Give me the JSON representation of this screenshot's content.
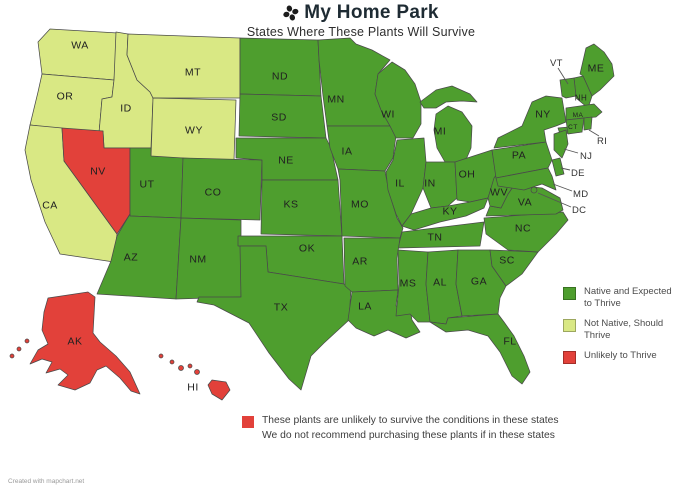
{
  "header": {
    "brand": "My Home Park",
    "subtitle": "States Where These Plants Will Survive"
  },
  "legend": {
    "items": [
      {
        "status": "native",
        "color": "#4e9e2e",
        "label": "Native and Expected to Thrive"
      },
      {
        "status": "not_native",
        "color": "#d9e884",
        "label": "Not Native, Should Thrive"
      },
      {
        "status": "unlikely",
        "color": "#e2413a",
        "label": "Unlikely to Thrive"
      }
    ]
  },
  "note": {
    "swatch_color": "#e2413a",
    "line1": "These plants are unlikely to survive the conditions in these states",
    "line2": "We do not recommend purchasing these plants if in these states"
  },
  "credit": "Created with mapchart.net",
  "map": {
    "border_color": "#4a4a4a",
    "states": [
      {
        "id": "WA",
        "label": "WA",
        "status": "not_native"
      },
      {
        "id": "OR",
        "label": "OR",
        "status": "not_native"
      },
      {
        "id": "ID",
        "label": "ID",
        "status": "not_native"
      },
      {
        "id": "MT",
        "label": "MT",
        "status": "not_native"
      },
      {
        "id": "WY",
        "label": "WY",
        "status": "not_native"
      },
      {
        "id": "CA",
        "label": "CA",
        "status": "not_native"
      },
      {
        "id": "NV",
        "label": "NV",
        "status": "unlikely"
      },
      {
        "id": "AK",
        "label": "AK",
        "status": "unlikely"
      },
      {
        "id": "HI",
        "label": "HI",
        "status": "unlikely"
      },
      {
        "id": "UT",
        "label": "UT",
        "status": "native"
      },
      {
        "id": "CO",
        "label": "CO",
        "status": "native"
      },
      {
        "id": "AZ",
        "label": "AZ",
        "status": "native"
      },
      {
        "id": "NM",
        "label": "NM",
        "status": "native"
      },
      {
        "id": "ND",
        "label": "ND",
        "status": "native"
      },
      {
        "id": "SD",
        "label": "SD",
        "status": "native"
      },
      {
        "id": "NE",
        "label": "NE",
        "status": "native"
      },
      {
        "id": "KS",
        "label": "KS",
        "status": "native"
      },
      {
        "id": "OK",
        "label": "OK",
        "status": "native"
      },
      {
        "id": "TX",
        "label": "TX",
        "status": "native"
      },
      {
        "id": "MN",
        "label": "MN",
        "status": "native"
      },
      {
        "id": "IA",
        "label": "IA",
        "status": "native"
      },
      {
        "id": "WI",
        "label": "WI",
        "status": "native"
      },
      {
        "id": "MI",
        "label": "MI",
        "status": "native"
      },
      {
        "id": "MO",
        "label": "MO",
        "status": "native"
      },
      {
        "id": "IL",
        "label": "IL",
        "status": "native"
      },
      {
        "id": "IN",
        "label": "IN",
        "status": "native"
      },
      {
        "id": "OH",
        "label": "OH",
        "status": "native"
      },
      {
        "id": "KY",
        "label": "KY",
        "status": "native"
      },
      {
        "id": "TN",
        "label": "TN",
        "status": "native"
      },
      {
        "id": "AR",
        "label": "AR",
        "status": "native"
      },
      {
        "id": "LA",
        "label": "LA",
        "status": "native"
      },
      {
        "id": "MS",
        "label": "MS",
        "status": "native"
      },
      {
        "id": "AL",
        "label": "AL",
        "status": "native"
      },
      {
        "id": "GA",
        "label": "GA",
        "status": "native"
      },
      {
        "id": "FL",
        "label": "FL",
        "status": "native"
      },
      {
        "id": "SC",
        "label": "SC",
        "status": "native"
      },
      {
        "id": "NC",
        "label": "NC",
        "status": "native"
      },
      {
        "id": "VA",
        "label": "VA",
        "status": "native"
      },
      {
        "id": "WV",
        "label": "WV",
        "status": "native"
      },
      {
        "id": "PA",
        "label": "PA",
        "status": "native"
      },
      {
        "id": "NY",
        "label": "NY",
        "status": "native"
      },
      {
        "id": "ME",
        "label": "ME",
        "status": "native"
      },
      {
        "id": "NH",
        "label": "NH",
        "status": "native"
      },
      {
        "id": "VT",
        "label": "VT",
        "status": "native"
      },
      {
        "id": "MA",
        "label": "MA",
        "status": "native"
      },
      {
        "id": "CT",
        "label": "CT",
        "status": "native"
      },
      {
        "id": "RI",
        "label": "RI",
        "status": "native"
      },
      {
        "id": "NJ",
        "label": "NJ",
        "status": "native"
      },
      {
        "id": "DE",
        "label": "DE",
        "status": "native"
      },
      {
        "id": "MD",
        "label": "MD",
        "status": "native"
      },
      {
        "id": "DC",
        "label": "DC",
        "status": "native"
      }
    ]
  }
}
